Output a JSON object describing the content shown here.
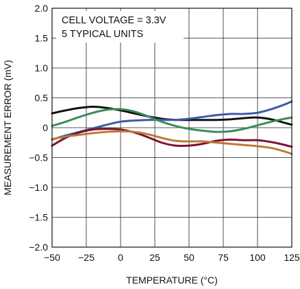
{
  "chart_data": {
    "type": "line",
    "xlabel": "TEMPERATURE (°C)",
    "ylabel": "MEASUREMENT ERROR (mV)",
    "xlim": [
      -50,
      125
    ],
    "ylim": [
      -2.0,
      2.0
    ],
    "x_ticks": [
      -50,
      -25,
      0,
      25,
      50,
      75,
      100,
      125
    ],
    "y_ticks": [
      -2.0,
      -1.5,
      -1.0,
      -0.5,
      0,
      0.5,
      1.0,
      1.5,
      2.0
    ],
    "x_tick_labels": [
      "−50",
      "−25",
      "0",
      "25",
      "50",
      "75",
      "100",
      "125"
    ],
    "y_tick_labels": [
      "−2.0",
      "−1.5",
      "−1.0",
      "−0.5",
      "0",
      "0.5",
      "1.0",
      "1.5",
      "2.0"
    ],
    "grid": true,
    "annotations": [
      "CELL VOLTAGE = 3.3V",
      "5 TYPICAL UNITS"
    ],
    "series": [
      {
        "color": "#111111",
        "x": [
          -50,
          -40,
          -30,
          -20,
          -10,
          0,
          10,
          20,
          30,
          40,
          50,
          60,
          70,
          80,
          90,
          100,
          110,
          120,
          125
        ],
        "y": [
          0.24,
          0.29,
          0.33,
          0.35,
          0.33,
          0.29,
          0.24,
          0.19,
          0.15,
          0.13,
          0.13,
          0.13,
          0.13,
          0.14,
          0.16,
          0.17,
          0.14,
          0.08,
          0.05
        ]
      },
      {
        "color": "#3d5aa8",
        "x": [
          -50,
          -40,
          -30,
          -20,
          -10,
          0,
          10,
          20,
          30,
          40,
          50,
          60,
          70,
          80,
          90,
          100,
          110,
          120,
          125
        ],
        "y": [
          -0.2,
          -0.13,
          -0.07,
          -0.01,
          0.05,
          0.1,
          0.12,
          0.13,
          0.13,
          0.13,
          0.15,
          0.18,
          0.21,
          0.23,
          0.23,
          0.25,
          0.31,
          0.39,
          0.44
        ]
      },
      {
        "color": "#3a8c5a",
        "x": [
          -50,
          -40,
          -30,
          -20,
          -10,
          0,
          10,
          20,
          30,
          40,
          50,
          60,
          70,
          80,
          90,
          100,
          110,
          120,
          125
        ],
        "y": [
          0.03,
          0.1,
          0.18,
          0.25,
          0.3,
          0.31,
          0.27,
          0.19,
          0.1,
          0.03,
          -0.02,
          -0.05,
          -0.07,
          -0.06,
          -0.02,
          0.04,
          0.1,
          0.15,
          0.17
        ]
      },
      {
        "color": "#7a1530",
        "x": [
          -50,
          -40,
          -30,
          -20,
          -10,
          0,
          10,
          20,
          30,
          40,
          50,
          60,
          70,
          80,
          90,
          100,
          110,
          120,
          125
        ],
        "y": [
          -0.3,
          -0.17,
          -0.08,
          -0.03,
          -0.02,
          -0.03,
          -0.08,
          -0.16,
          -0.25,
          -0.3,
          -0.3,
          -0.27,
          -0.22,
          -0.2,
          -0.21,
          -0.21,
          -0.24,
          -0.29,
          -0.32
        ]
      },
      {
        "color": "#c07838",
        "x": [
          -50,
          -40,
          -30,
          -20,
          -10,
          0,
          10,
          20,
          30,
          40,
          50,
          60,
          70,
          80,
          90,
          100,
          110,
          120,
          125
        ],
        "y": [
          -0.19,
          -0.15,
          -0.12,
          -0.09,
          -0.07,
          -0.06,
          -0.07,
          -0.11,
          -0.17,
          -0.22,
          -0.23,
          -0.23,
          -0.25,
          -0.27,
          -0.29,
          -0.31,
          -0.34,
          -0.4,
          -0.44
        ]
      }
    ]
  }
}
